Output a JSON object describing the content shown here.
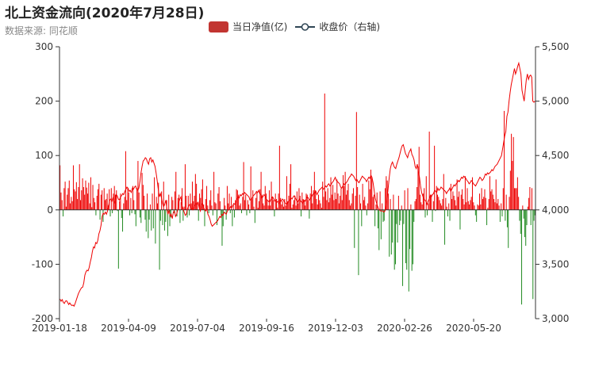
{
  "title": "北上资金流向(2020年7月28日)",
  "subtitle": "数据来源: 同花顺",
  "legend": {
    "bar_label": "当日净值(亿)",
    "line_label": "收盘价（右轴)"
  },
  "colors": {
    "positive": "#ee0000",
    "negative": "#228b22",
    "line": "#ee0000",
    "legend_bar": "#c23531",
    "legend_line": "#2f4554",
    "axis": "#333333"
  },
  "chart_data": {
    "type": "bar+line",
    "x_ticks": [
      "2019-01-18",
      "2019-04-09",
      "2019-07-04",
      "2019-09-16",
      "2019-12-03",
      "2020-02-26",
      "2020-05-20"
    ],
    "left_axis": {
      "min": -200,
      "max": 300,
      "ticks": [
        -200,
        -100,
        0,
        100,
        200,
        300
      ]
    },
    "right_axis": {
      "min": 3000,
      "max": 5500,
      "ticks": [
        "3,000",
        "3,500",
        "4,000",
        "4,500",
        "5,000",
        "5,500"
      ]
    },
    "series": [
      {
        "name": "当日净值(亿)",
        "type": "bar",
        "values": [
          82,
          32,
          18,
          -12,
          40,
          52,
          6,
          28,
          40,
          54,
          12,
          24,
          16,
          82,
          38,
          34,
          51,
          20,
          42,
          84,
          18,
          36,
          58,
          42,
          28,
          54,
          41,
          30,
          50,
          12,
          60,
          5,
          46,
          22,
          14,
          -10,
          26,
          38,
          48,
          -18,
          28,
          36,
          -22,
          40,
          18,
          20,
          30,
          8,
          38,
          -12,
          40,
          -6,
          30,
          44,
          28,
          36,
          -2,
          -108,
          16,
          30,
          -15,
          -40,
          12,
          24,
          108,
          18,
          40,
          32,
          -10,
          22,
          -6,
          44,
          18,
          -8,
          -30,
          40,
          90,
          32,
          -14,
          -24,
          68,
          46,
          26,
          -18,
          -40,
          30,
          -52,
          -18,
          10,
          -38,
          30,
          -34,
          60,
          -62,
          24,
          12,
          50,
          -110,
          -20,
          34,
          -28,
          52,
          -38,
          -22,
          18,
          -48,
          28,
          -30,
          -14,
          24,
          18,
          -6,
          34,
          70,
          -12,
          22,
          28,
          -24,
          14,
          40,
          -20,
          6,
          84,
          26,
          -14,
          26,
          -10,
          30,
          12,
          52,
          16,
          26,
          66,
          48,
          14,
          -20,
          30,
          22,
          38,
          56,
          10,
          -30,
          20,
          44,
          8,
          -6,
          18,
          36,
          8,
          -10,
          70,
          14,
          12,
          -28,
          30,
          42,
          16,
          -10,
          -66,
          -30,
          22,
          8,
          -18,
          44,
          12,
          30,
          -6,
          24,
          -30,
          10,
          -14,
          18,
          38,
          36,
          28,
          8,
          12,
          -6,
          24,
          88,
          18,
          28,
          -10,
          18,
          10,
          -6,
          80,
          20,
          36,
          6,
          -24,
          22,
          32,
          4,
          16,
          38,
          70,
          28,
          12,
          8,
          44,
          30,
          18,
          8,
          36,
          8,
          52,
          24,
          18,
          -12,
          30,
          20,
          4,
          30,
          118,
          22,
          10,
          16,
          6,
          20,
          8,
          62,
          16,
          26,
          48,
          84,
          4,
          10,
          18,
          26,
          8,
          34,
          12,
          40,
          26,
          -12,
          32,
          20,
          18,
          8,
          30,
          28,
          18,
          -16,
          30,
          44,
          12,
          36,
          70,
          36,
          20,
          10,
          28,
          18,
          12,
          4,
          52,
          24,
          214,
          34,
          18,
          40,
          14,
          22,
          60,
          28,
          46,
          18,
          32,
          20,
          56,
          30,
          12,
          26,
          40,
          18,
          64,
          44,
          70,
          28,
          36,
          48,
          18,
          8,
          12,
          30,
          40,
          -70,
          26,
          180,
          42,
          -120,
          28,
          12,
          -30,
          48,
          18,
          24,
          8,
          -10,
          12,
          54,
          38,
          74,
          60,
          24,
          28,
          -30,
          10,
          32,
          -34,
          -74,
          34,
          -54,
          12,
          -22,
          -20,
          40,
          62,
          54,
          30,
          -86,
          20,
          -82,
          -60,
          28,
          -110,
          -100,
          -26,
          -60,
          26,
          -28,
          -20,
          8,
          -140,
          -26,
          36,
          -98,
          -110,
          40,
          -150,
          -72,
          10,
          -112,
          -100,
          -22,
          16,
          20,
          42,
          80,
          116,
          28,
          14,
          10,
          30,
          40,
          -14,
          62,
          -10,
          12,
          144,
          28,
          28,
          -22,
          16,
          118,
          -2,
          44,
          28,
          24,
          18,
          12,
          8,
          20,
          66,
          -64,
          22,
          6,
          -12,
          12,
          -20,
          48,
          20,
          34,
          26,
          18,
          8,
          56,
          24,
          34,
          -36,
          28,
          38,
          20,
          10,
          62,
          14,
          40,
          16,
          10,
          18,
          24,
          60,
          14,
          8,
          -10,
          -22,
          10,
          8,
          30,
          10,
          40,
          20,
          24,
          38,
          22,
          -28,
          4,
          20,
          62,
          34,
          38,
          28,
          20,
          14,
          56,
          12,
          20,
          8,
          -22,
          12,
          -12,
          40,
          182,
          -20,
          28,
          -32,
          -70,
          24,
          72,
          140,
          90,
          134,
          40,
          40,
          40,
          60,
          24,
          -20,
          -44,
          -174,
          8,
          -16,
          -50,
          -66,
          -28,
          6,
          22,
          42,
          -28,
          40,
          -164,
          -20,
          -10
        ]
      },
      {
        "name": "收盘价",
        "type": "line",
        "values": [
          3180,
          3160,
          3175,
          3150,
          3140,
          3160,
          3165,
          3150,
          3130,
          3145,
          3130,
          3120,
          3125,
          3115,
          3140,
          3170,
          3200,
          3230,
          3250,
          3270,
          3285,
          3290,
          3330,
          3400,
          3430,
          3445,
          3440,
          3470,
          3520,
          3560,
          3620,
          3660,
          3650,
          3700,
          3690,
          3720,
          3780,
          3810,
          3860,
          3940,
          3970,
          3960,
          3980,
          3960,
          3990,
          4040,
          4090,
          4100,
          4080,
          4110,
          4090,
          4060,
          4140,
          4130,
          4100,
          4090,
          4120,
          4130,
          4150,
          4140,
          4170,
          4190,
          4210,
          4200,
          4170,
          4180,
          4160,
          4200,
          4190,
          4210,
          4220,
          4190,
          4180,
          4200,
          4260,
          4340,
          4400,
          4450,
          4460,
          4480,
          4470,
          4440,
          4420,
          4470,
          4480,
          4440,
          4460,
          4430,
          4400,
          4340,
          4270,
          4190,
          4120,
          4150,
          4110,
          4060,
          4030,
          4050,
          4090,
          4010,
          3960,
          4000,
          3940,
          3960,
          3920,
          3980,
          3990,
          3940,
          3960,
          4000,
          4070,
          4100,
          4120,
          4040,
          4010,
          3980,
          3950,
          3960,
          4010,
          4030,
          4050,
          4040,
          4010,
          4000,
          4020,
          4040,
          4060,
          4050,
          4070,
          4020,
          3990,
          4040,
          4060,
          4020,
          4000,
          3990,
          4010,
          3960,
          3940,
          3910,
          3870,
          3850,
          3860,
          3870,
          3880,
          3890,
          3900,
          3920,
          3940,
          3930,
          3960,
          3950,
          3980,
          3970,
          3960,
          3990,
          4000,
          4010,
          4030,
          4020,
          4040,
          4060,
          4050,
          4080,
          4100,
          4120,
          4110,
          4140,
          4130,
          4150,
          4140,
          4160,
          4150,
          4140,
          4130,
          4120,
          4090,
          4100,
          4110,
          4130,
          4140,
          4150,
          4170,
          4160,
          4180,
          4150,
          4140,
          4110,
          4120,
          4140,
          4130,
          4100,
          4090,
          4080,
          4070,
          4090,
          4110,
          4120,
          4100,
          4080,
          4090,
          4070,
          4080,
          4060,
          4090,
          4080,
          4100,
          4090,
          4070,
          4060,
          4050,
          4070,
          4080,
          4090,
          4110,
          4100,
          4120,
          4130,
          4110,
          4090,
          4070,
          4090,
          4100,
          4080,
          4070,
          4060,
          4090,
          4080,
          4100,
          4120,
          4110,
          4090,
          4100,
          4120,
          4140,
          4150,
          4160,
          4170,
          4140,
          4160,
          4180,
          4190,
          4200,
          4210,
          4190,
          4200,
          4220,
          4210,
          4230,
          4240,
          4220,
          4230,
          4250,
          4260,
          4280,
          4300,
          4270,
          4260,
          4250,
          4240,
          4210,
          4200,
          4220,
          4240,
          4230,
          4250,
          4260,
          4280,
          4300,
          4310,
          4330,
          4320,
          4310,
          4290,
          4270,
          4280,
          4260,
          4250,
          4270,
          4290,
          4310,
          4300,
          4290,
          4280,
          4260,
          4280,
          4300,
          4290,
          4320,
          4300,
          4250,
          4180,
          4110,
          4070,
          4040,
          4010,
          4000,
          3990,
          3990,
          3990,
          3980,
          3990,
          4020,
          4100,
          4200,
          4300,
          4380,
          4420,
          4440,
          4410,
          4390,
          4380,
          4420,
          4450,
          4480,
          4520,
          4560,
          4590,
          4600,
          4560,
          4520,
          4500,
          4480,
          4520,
          4540,
          4560,
          4510,
          4490,
          4460,
          4400,
          4380,
          4420,
          4350,
          4300,
          4220,
          4160,
          4130,
          4100,
          4090,
          4080,
          4050,
          4080,
          4100,
          4130,
          4120,
          4140,
          4150,
          4180,
          4170,
          4160,
          4200,
          4180,
          4190,
          4210,
          4200,
          4190,
          4180,
          4170,
          4150,
          4170,
          4180,
          4200,
          4170,
          4190,
          4210,
          4230,
          4220,
          4240,
          4250,
          4270,
          4260,
          4280,
          4300,
          4290,
          4310,
          4300,
          4290,
          4270,
          4260,
          4240,
          4250,
          4270,
          4260,
          4240,
          4230,
          4220,
          4240,
          4260,
          4280,
          4300,
          4290,
          4270,
          4280,
          4300,
          4330,
          4320,
          4340,
          4330,
          4340,
          4350,
          4370,
          4360,
          4380,
          4400,
          4410,
          4420,
          4440,
          4460,
          4480,
          4500,
          4560,
          4620,
          4680,
          4720,
          4860,
          4900,
          5000,
          5080,
          5150,
          5200,
          5250,
          5300,
          5250,
          5280,
          5320,
          5350,
          5300,
          5250,
          5100,
          5050,
          5000,
          5100,
          5200,
          5250,
          5200,
          5230,
          5240,
          5220,
          5000,
          4990,
          5000
        ]
      }
    ]
  }
}
